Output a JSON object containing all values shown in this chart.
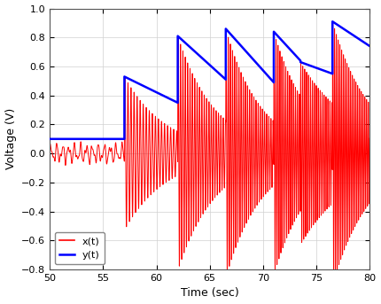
{
  "xlabel": "Time (sec)",
  "ylabel": "Voltage (V)",
  "xlim": [
    50,
    80
  ],
  "ylim": [
    -0.8,
    1.0
  ],
  "xticks": [
    50,
    55,
    60,
    65,
    70,
    75,
    80
  ],
  "yticks": [
    -0.8,
    -0.6,
    -0.4,
    -0.2,
    0.0,
    0.2,
    0.4,
    0.6,
    0.8,
    1.0
  ],
  "legend": [
    {
      "label": "x(t)",
      "color": "#FF0000"
    },
    {
      "label": "y(t)",
      "color": "#0000FF"
    }
  ],
  "background_color": "#FFFFFF",
  "grid_color": "#D0D0D0",
  "signal_color": "#FF0000",
  "envelope_color": "#0000FF",
  "envelope_segments": [
    [
      50.0,
      0.1
    ],
    [
      57.0,
      0.1
    ],
    [
      57.0,
      0.53
    ],
    [
      62.0,
      0.35
    ],
    [
      62.0,
      0.81
    ],
    [
      66.5,
      0.51
    ],
    [
      66.5,
      0.86
    ],
    [
      71.0,
      0.49
    ],
    [
      71.0,
      0.84
    ],
    [
      73.5,
      0.64
    ],
    [
      73.5,
      0.63
    ],
    [
      76.5,
      0.55
    ],
    [
      76.5,
      0.91
    ],
    [
      80.0,
      0.74
    ]
  ],
  "bursts": [
    {
      "t0": 50.0,
      "t1": 57.0,
      "amp": 0.08,
      "freq": 1.8,
      "decay": 0.0,
      "carrier": 1.8
    },
    {
      "t0": 57.0,
      "t1": 62.0,
      "amp": 0.53,
      "freq": 2.5,
      "decay": 0.25,
      "carrier": 3.5
    },
    {
      "t0": 62.0,
      "t1": 66.5,
      "amp": 0.81,
      "freq": 2.5,
      "decay": 0.28,
      "carrier": 4.5
    },
    {
      "t0": 66.5,
      "t1": 71.0,
      "amp": 0.86,
      "freq": 2.5,
      "decay": 0.3,
      "carrier": 5.0
    },
    {
      "t0": 71.0,
      "t1": 73.5,
      "amp": 0.84,
      "freq": 2.5,
      "decay": 0.3,
      "carrier": 5.5
    },
    {
      "t0": 73.5,
      "t1": 76.5,
      "amp": 0.63,
      "freq": 2.5,
      "decay": 0.2,
      "carrier": 5.5
    },
    {
      "t0": 76.5,
      "t1": 80.0,
      "amp": 0.91,
      "freq": 2.5,
      "decay": 0.28,
      "carrier": 6.0
    }
  ],
  "dt": 0.005
}
